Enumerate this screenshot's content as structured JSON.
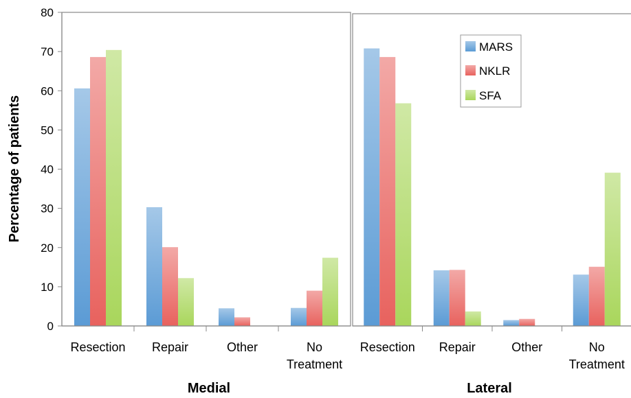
{
  "chart_data": [
    {
      "type": "bar",
      "panel": "Medial",
      "categories": [
        "Resection",
        "Repair",
        "Other",
        "No Treatment"
      ],
      "series": [
        {
          "name": "MARS",
          "values": [
            60.6,
            30.3,
            4.5,
            4.6
          ]
        },
        {
          "name": "NKLR",
          "values": [
            68.6,
            20.1,
            2.2,
            9.0
          ]
        },
        {
          "name": "SFA",
          "values": [
            70.4,
            12.2,
            0,
            17.4
          ]
        }
      ]
    },
    {
      "type": "bar",
      "panel": "Lateral",
      "categories": [
        "Resection",
        "Repair",
        "Other",
        "No Treatment"
      ],
      "series": [
        {
          "name": "MARS",
          "values": [
            70.8,
            14.2,
            1.5,
            13.1
          ]
        },
        {
          "name": "NKLR",
          "values": [
            68.6,
            14.3,
            1.8,
            15.1
          ]
        },
        {
          "name": "SFA",
          "values": [
            56.8,
            3.7,
            0,
            39.1
          ]
        }
      ]
    }
  ],
  "axis": {
    "ylabel": "Percentage of patients",
    "ylim": [
      0,
      80
    ],
    "ticks": [
      "0",
      "10",
      "20",
      "30",
      "40",
      "50",
      "60",
      "70",
      "80"
    ]
  },
  "category_labels": [
    [
      "Resection"
    ],
    [
      "Repair"
    ],
    [
      "Other"
    ],
    [
      "No",
      "Treatment"
    ]
  ],
  "legend": {
    "placement": "top-right of Lateral panel",
    "entries": [
      "MARS",
      "NKLR",
      "SFA"
    ]
  },
  "colors": {
    "MARS": "#5b9bd5",
    "NKLR": "#e8625e",
    "SFA": "#a9d65c"
  }
}
